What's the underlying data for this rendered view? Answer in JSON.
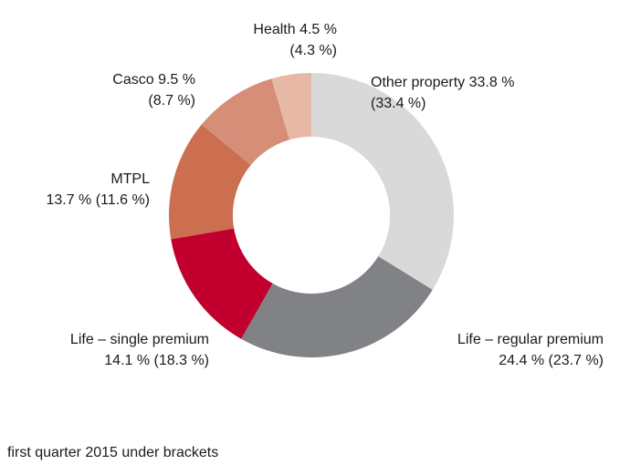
{
  "chart_data": {
    "type": "pie",
    "variant": "donut",
    "title": "",
    "slices": [
      {
        "label": "Other property",
        "value": 33.8,
        "prior": 33.4,
        "color": "#d9d9d9",
        "text_lines": [
          "Other property 33.8 %",
          "(33.4 %)"
        ],
        "anchor": "start"
      },
      {
        "label": "Life – regular premium",
        "value": 24.4,
        "prior": 23.7,
        "color": "#808285",
        "text_lines": [
          "Life – regular premium",
          "24.4 % (23.7 %)"
        ],
        "anchor": "end"
      },
      {
        "label": "Life – single premium",
        "value": 14.1,
        "prior": 18.3,
        "color": "#c2002f",
        "text_lines": [
          "Life – single premium",
          "14.1 % (18.3 %)"
        ],
        "anchor": "end"
      },
      {
        "label": "MTPL",
        "value": 13.7,
        "prior": 11.6,
        "color": "#cc6e50",
        "text_lines": [
          "MTPL",
          "13.7 % (11.6 %)"
        ],
        "anchor": "end"
      },
      {
        "label": "Casco",
        "value": 9.5,
        "prior": 8.7,
        "color": "#d68e78",
        "text_lines": [
          "Casco 9.5 %",
          "(8.7 %)"
        ],
        "anchor": "end"
      },
      {
        "label": "Health",
        "value": 4.5,
        "prior": 4.3,
        "color": "#e8b8a6",
        "text_lines": [
          "Health 4.5 %",
          "(4.3 %)"
        ],
        "anchor": "end"
      }
    ],
    "legend": "none"
  },
  "footnote": "first quarter 2015 under brackets"
}
